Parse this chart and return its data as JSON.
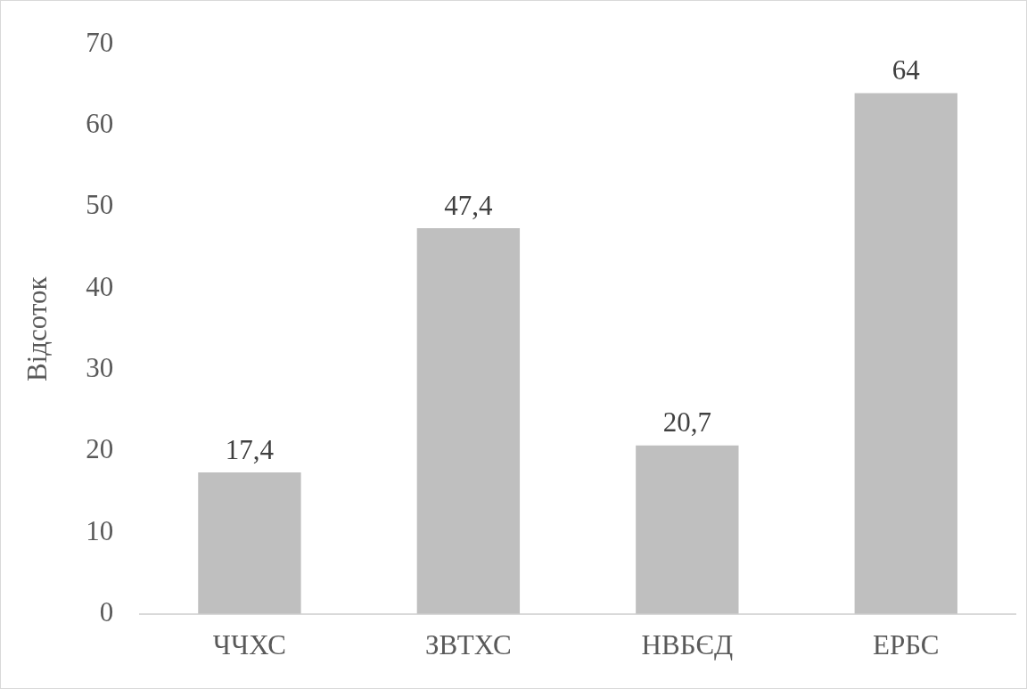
{
  "chart_data": {
    "type": "bar",
    "ylabel": "Відсоток",
    "categories": [
      "ЧЧХС",
      "ЗВТХС",
      "НВБЄД",
      "ЕРБС"
    ],
    "values": [
      17.4,
      47.4,
      20.7,
      64
    ],
    "value_labels": [
      "17,4",
      "47,4",
      "20,7",
      "64"
    ],
    "color": "#bfbfbf",
    "ylim": [
      0,
      70
    ],
    "yticks": [
      0,
      10,
      20,
      30,
      40,
      50,
      60,
      70
    ],
    "grid": false,
    "legend": false
  }
}
